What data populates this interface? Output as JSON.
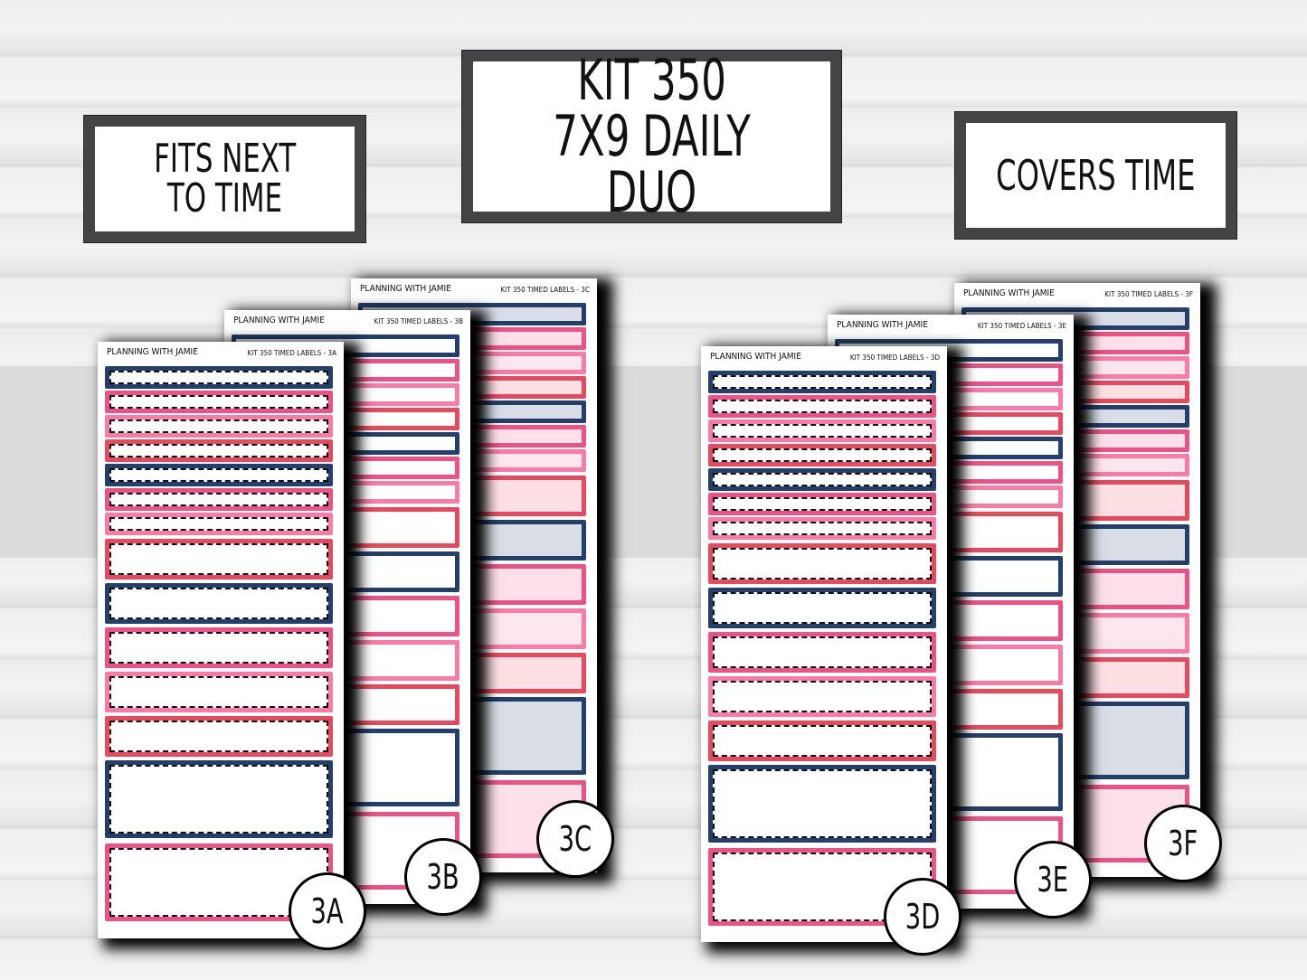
{
  "titles": {
    "left": [
      "FITS NEXT",
      "TO TIME"
    ],
    "center": [
      "KIT 350",
      "7X9 DAILY DUO"
    ],
    "right": [
      "COVERS TIME"
    ]
  },
  "colors": {
    "navy": "#243f6b",
    "pink": "#ee5186",
    "light_pink": "#fb7aa6",
    "red": "#e8495f",
    "frame": "#444444"
  },
  "sheets": [
    {
      "id": "3A",
      "brand": "PLANNING WITH JAMIE",
      "label": "KIT 350 TIMED LABELS - 3A",
      "style": "dashed"
    },
    {
      "id": "3B",
      "brand": "PLANNING WITH JAMIE",
      "label": "KIT 350 TIMED LABELS - 3B",
      "style": "plain"
    },
    {
      "id": "3C",
      "brand": "PLANNING WITH JAMIE",
      "label": "KIT 350 TIMED LABELS - 3C",
      "style": "tinted"
    },
    {
      "id": "3D",
      "brand": "PLANNING WITH JAMIE",
      "label": "KIT 350 TIMED LABELS - 3D",
      "style": "dashed"
    },
    {
      "id": "3E",
      "brand": "PLANNING WITH JAMIE",
      "label": "KIT 350 TIMED LABELS - 3E",
      "style": "plain"
    },
    {
      "id": "3F",
      "brand": "PLANNING WITH JAMIE",
      "label": "KIT 350 TIMED LABELS - 3F",
      "style": "tinted"
    }
  ]
}
